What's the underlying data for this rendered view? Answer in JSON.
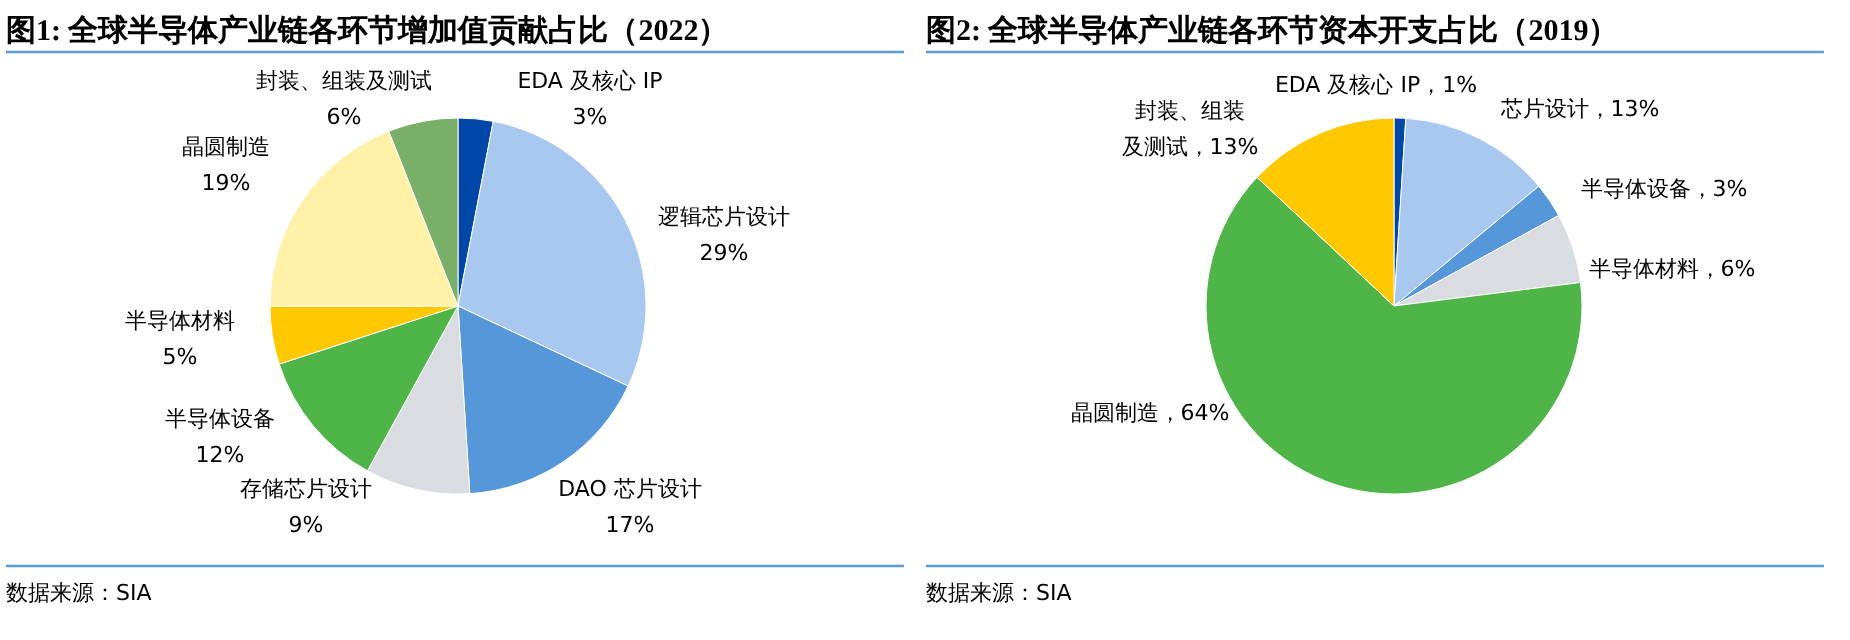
{
  "chart_data": [
    {
      "type": "pie",
      "title": "图1: 全球半导体产业链各环节增加值贡献占比（2022）",
      "categories": [
        "EDA 及核心 IP",
        "逻辑芯片设计",
        "DAO 芯片设计",
        "存储芯片设计",
        "半导体设备",
        "半导体材料",
        "晶圆制造",
        "封装、组装及测试"
      ],
      "values": [
        3,
        29,
        17,
        9,
        12,
        5,
        19,
        6
      ],
      "value_labels": [
        "3%",
        "29%",
        "17%",
        "9%",
        "12%",
        "5%",
        "19%",
        "6%"
      ],
      "colors": [
        "#0047a8",
        "#a9c8f0",
        "#5597d8",
        "#d9dce1",
        "#50b548",
        "#ffc800",
        "#fff2a8",
        "#7aaf6a"
      ],
      "annotations": [
        "数据来源：SIA"
      ]
    },
    {
      "type": "pie",
      "title": "图2: 全球半导体产业链各环节资本开支占比（2019）",
      "categories": [
        "EDA 及核心 IP",
        "芯片设计",
        "半导体设备",
        "半导体材料",
        "晶圆制造",
        "封装、组装及测试"
      ],
      "values": [
        1,
        13,
        3,
        6,
        64,
        13
      ],
      "value_labels": [
        "1%",
        "13%",
        "3%",
        "6%",
        "64%",
        "13%"
      ],
      "colors": [
        "#0047a8",
        "#a9c8f0",
        "#5597d8",
        "#d9dce1",
        "#50b548",
        "#ffc800"
      ],
      "annotations": [
        "数据来源：SIA"
      ]
    }
  ]
}
